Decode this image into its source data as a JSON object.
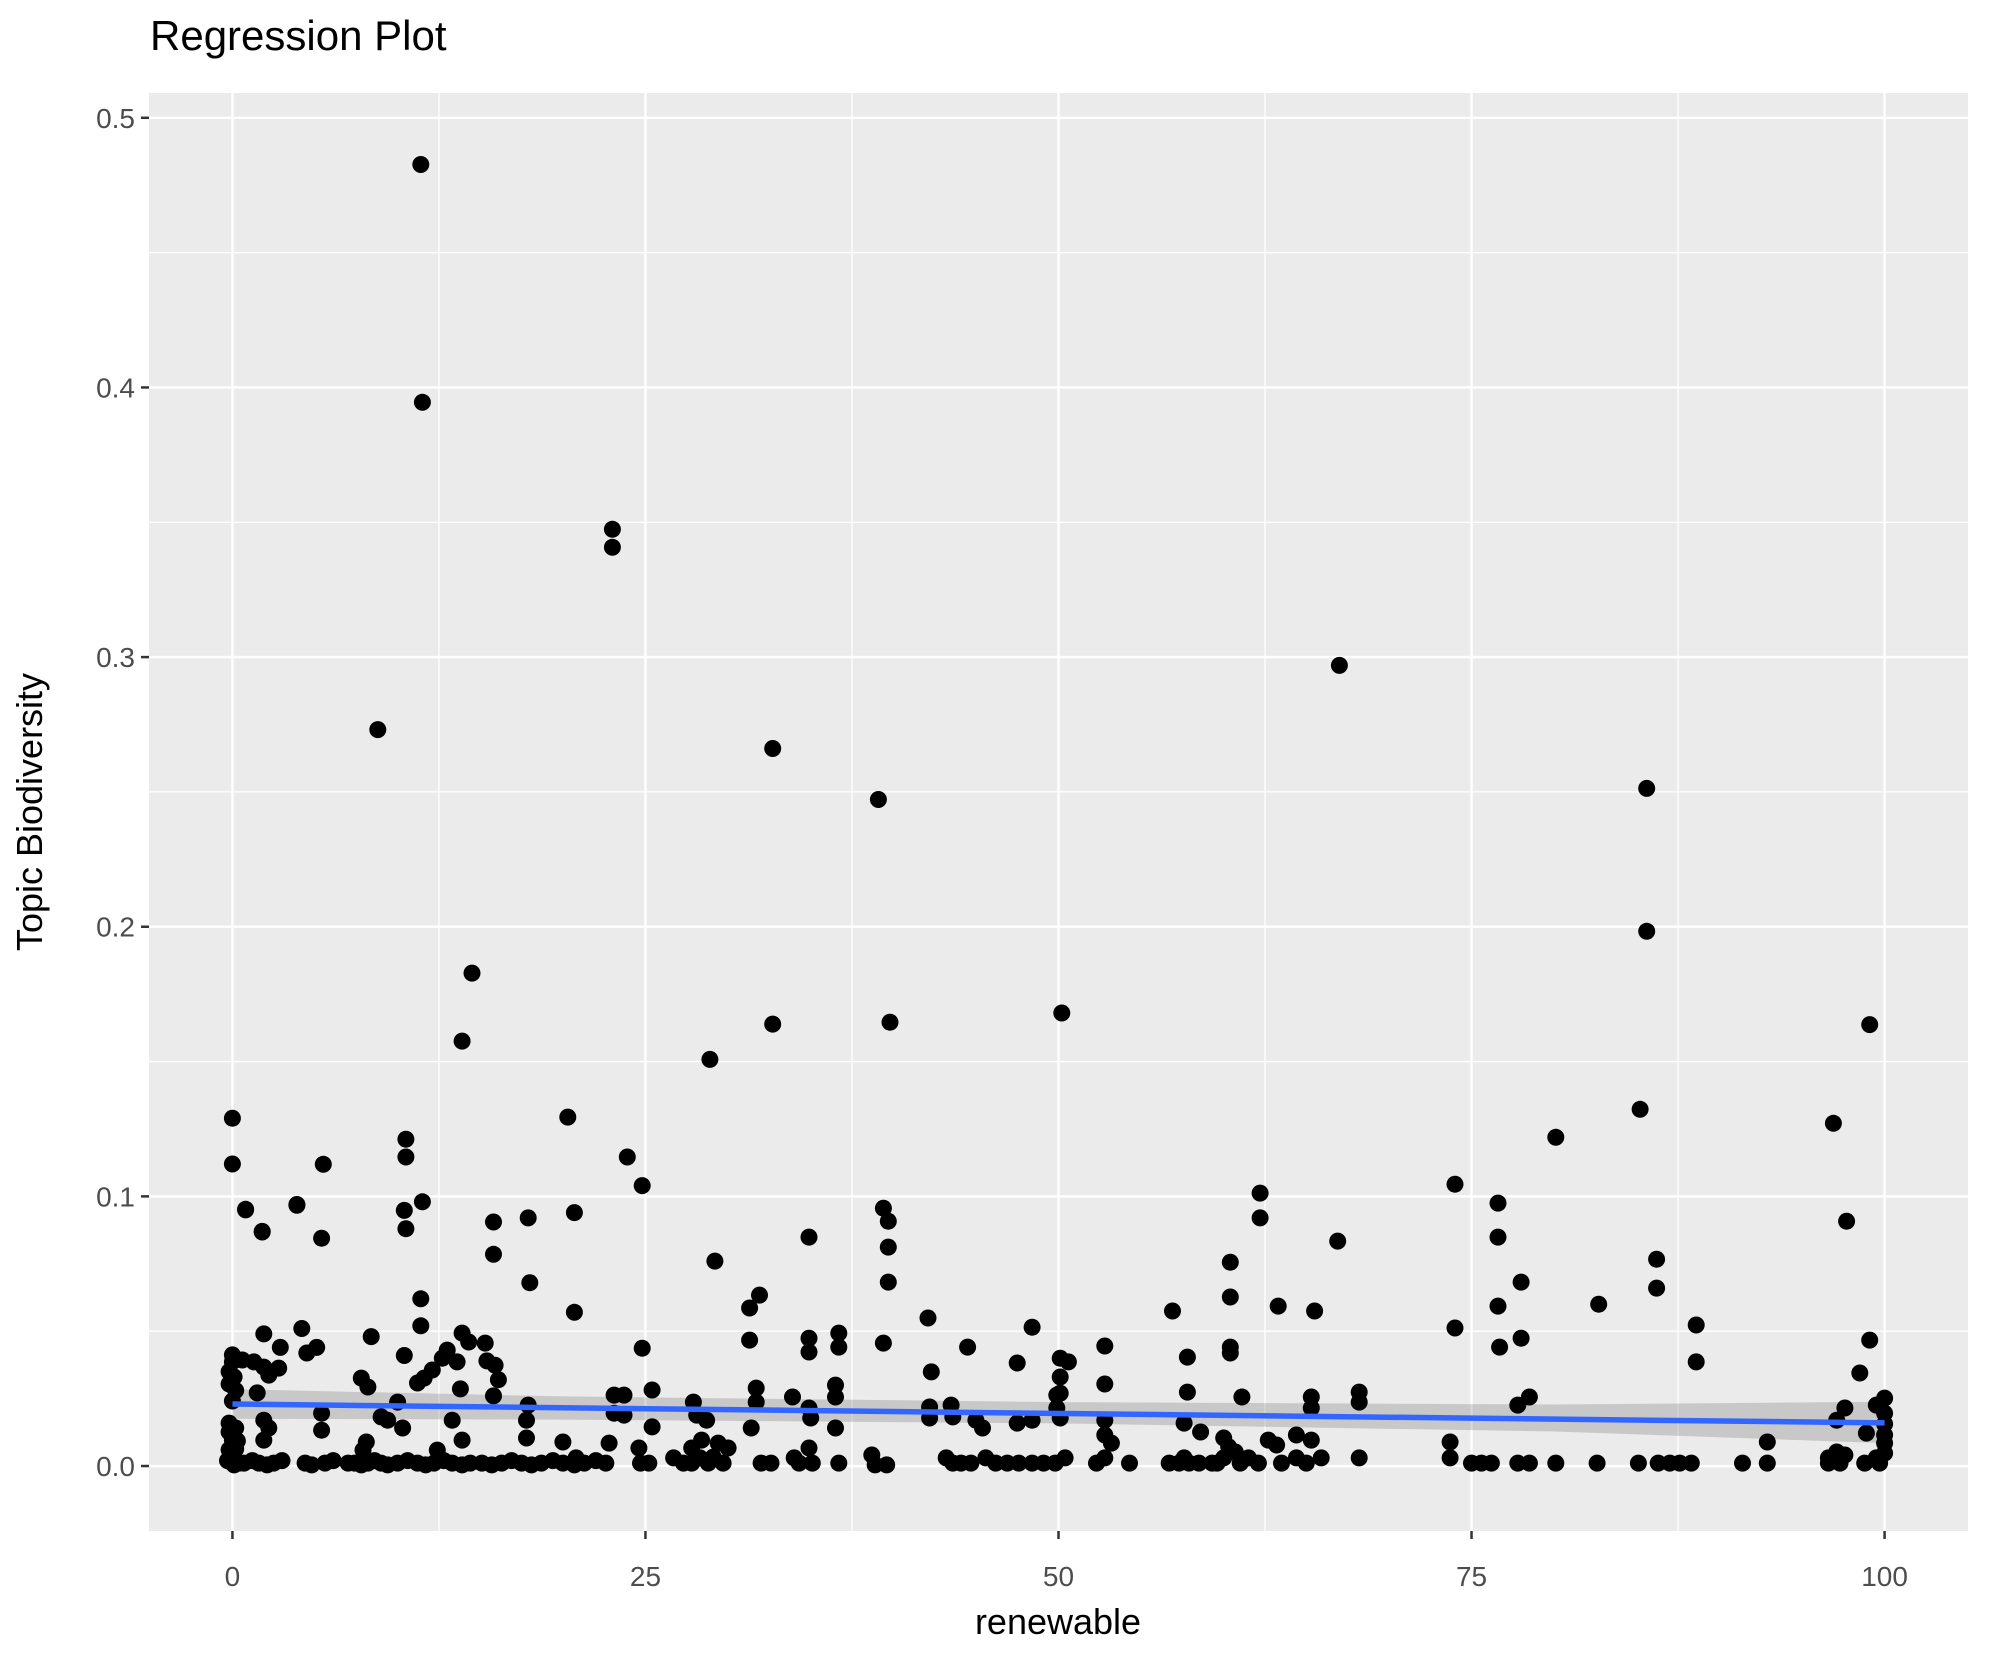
{
  "title": "Regression Plot",
  "chart_data": {
    "type": "scatter",
    "title": "Regression Plot",
    "xlabel": "renewable",
    "ylabel": "Topic Biodiversity",
    "legend": "none",
    "grid": "white major and minor gridlines on gray panel",
    "x_axis": {
      "ticks": [
        0,
        25,
        50,
        75,
        100
      ],
      "minor_ticks": [
        12.5,
        37.5,
        62.5,
        87.5
      ],
      "range": [
        -5.05,
        105.05
      ]
    },
    "y_axis": {
      "ticks": [
        0.0,
        0.1,
        0.2,
        0.3,
        0.4,
        0.5
      ],
      "tick_labels": [
        "0.0",
        "0.1",
        "0.2",
        "0.3",
        "0.4",
        "0.5"
      ],
      "minor_ticks": [
        0.05,
        0.15,
        0.25,
        0.35,
        0.45
      ],
      "range": [
        -0.0241,
        0.5092
      ]
    },
    "colors": {
      "panel_background": "#EBEBEB",
      "page_background": "#FFFFFF",
      "gridline": "#FFFFFF",
      "point": "#000000",
      "smooth_line": "#3366FF",
      "ci_ribbon": "#6E6E6E",
      "ci_ribbon_opacity": 0.28,
      "tick_label": "#4D4D4D",
      "tick_mark": "#333333",
      "title_text": "#000000"
    },
    "smooth": {
      "method": "lm",
      "line": [
        [
          0,
          0.023
        ],
        [
          100,
          0.016
        ]
      ],
      "ci_upper": [
        [
          0,
          0.0285
        ],
        [
          20,
          0.0258
        ],
        [
          50,
          0.0237
        ],
        [
          80,
          0.0228
        ],
        [
          100,
          0.0238
        ]
      ],
      "ci_lower": [
        [
          0,
          0.0175
        ],
        [
          20,
          0.0172
        ],
        [
          50,
          0.0158
        ],
        [
          80,
          0.0128
        ],
        [
          100,
          0.0085
        ]
      ]
    },
    "points": [
      [
        11.4,
        0.4827
      ],
      [
        11.5,
        0.3945
      ],
      [
        23.0,
        0.3474
      ],
      [
        23.0,
        0.3407
      ],
      [
        8.8,
        0.2731
      ],
      [
        32.7,
        0.2661
      ],
      [
        39.1,
        0.2472
      ],
      [
        67.0,
        0.2969
      ],
      [
        85.6,
        0.2513
      ],
      [
        85.6,
        0.1983
      ],
      [
        14.5,
        0.1828
      ],
      [
        13.9,
        0.1576
      ],
      [
        28.9,
        0.1508
      ],
      [
        32.7,
        0.1639
      ],
      [
        39.8,
        0.1646
      ],
      [
        50.2,
        0.168
      ],
      [
        99.1,
        0.1637
      ],
      [
        20.3,
        0.1294
      ],
      [
        85.2,
        0.1323
      ],
      [
        80.1,
        0.1219
      ],
      [
        96.9,
        0.1271
      ],
      [
        97.7,
        0.0908
      ],
      [
        74.0,
        0.1045
      ],
      [
        76.6,
        0.0975
      ],
      [
        76.6,
        0.0849
      ],
      [
        62.2,
        0.1012
      ],
      [
        62.2,
        0.092
      ],
      [
        66.9,
        0.0834
      ],
      [
        60.4,
        0.0756
      ],
      [
        56.9,
        0.0575
      ],
      [
        0,
        0.129
      ],
      [
        0,
        0.112
      ],
      [
        0,
        0.0412
      ],
      [
        0,
        0.0386
      ],
      [
        -0.2,
        0.035
      ],
      [
        0.1,
        0.033
      ],
      [
        -0.2,
        0.0304
      ],
      [
        0.2,
        0.028
      ],
      [
        0,
        0.0241
      ],
      [
        -0.2,
        0.0159
      ],
      [
        0.2,
        0.0141
      ],
      [
        -0.2,
        0.0126
      ],
      [
        0,
        0.0096
      ],
      [
        0.3,
        0.0093
      ],
      [
        -0.2,
        0.006
      ],
      [
        0.2,
        0.0063
      ],
      [
        0,
        0.0011
      ],
      [
        0.4,
        0.0011
      ],
      [
        -0.3,
        0.002
      ],
      [
        0.1,
        0.0004
      ],
      [
        0.6,
        0.0393
      ],
      [
        1.3,
        0.0386
      ],
      [
        1.9,
        0.0367
      ],
      [
        2.8,
        0.0363
      ],
      [
        2.2,
        0.0337
      ],
      [
        1.5,
        0.0271
      ],
      [
        1.9,
        0.017
      ],
      [
        2.2,
        0.0141
      ],
      [
        1.9,
        0.0096
      ],
      [
        0.8,
        0.0952
      ],
      [
        1.8,
        0.0868
      ],
      [
        3.9,
        0.0967
      ],
      [
        5.4,
        0.0845
      ],
      [
        5.5,
        0.1119
      ],
      [
        1.9,
        0.049
      ],
      [
        4.2,
        0.051
      ],
      [
        2.9,
        0.044
      ],
      [
        4.5,
        0.0419
      ],
      [
        5.1,
        0.044
      ],
      [
        5.4,
        0.0196
      ],
      [
        5.4,
        0.0133
      ],
      [
        0.7,
        0.0011
      ],
      [
        1.2,
        0.002
      ],
      [
        1.6,
        0.0011
      ],
      [
        2.1,
        0.0004
      ],
      [
        2.5,
        0.0011
      ],
      [
        3.0,
        0.002
      ],
      [
        4.4,
        0.0011
      ],
      [
        4.8,
        0.0004
      ],
      [
        5.6,
        0.0011
      ],
      [
        6.1,
        0.002
      ],
      [
        7.0,
        0.0011
      ],
      [
        7.8,
        0.0326
      ],
      [
        8.2,
        0.0293
      ],
      [
        8.4,
        0.048
      ],
      [
        8.1,
        0.0089
      ],
      [
        7.9,
        0.0059
      ],
      [
        9.0,
        0.0182
      ],
      [
        9.4,
        0.017
      ],
      [
        10.0,
        0.0237
      ],
      [
        10.3,
        0.0141
      ],
      [
        10.4,
        0.041
      ],
      [
        11.2,
        0.0308
      ],
      [
        11.6,
        0.0326
      ],
      [
        12.1,
        0.0356
      ],
      [
        12.7,
        0.04
      ],
      [
        13.0,
        0.043
      ],
      [
        13.6,
        0.0386
      ],
      [
        13.8,
        0.0286
      ],
      [
        13.3,
        0.017
      ],
      [
        13.9,
        0.0096
      ],
      [
        12.4,
        0.0059
      ],
      [
        10.5,
        0.1212
      ],
      [
        10.5,
        0.1146
      ],
      [
        11.5,
        0.098
      ],
      [
        10.4,
        0.0948
      ],
      [
        10.5,
        0.088
      ],
      [
        11.4,
        0.062
      ],
      [
        11.4,
        0.052
      ],
      [
        13.9,
        0.0493
      ],
      [
        14.3,
        0.046
      ],
      [
        15.3,
        0.0456
      ],
      [
        7.4,
        0.0011
      ],
      [
        7.8,
        0.0004
      ],
      [
        8.2,
        0.0011
      ],
      [
        8.6,
        0.002
      ],
      [
        9.0,
        0.0011
      ],
      [
        9.4,
        0.0004
      ],
      [
        10.0,
        0.0011
      ],
      [
        10.6,
        0.002
      ],
      [
        11.2,
        0.0011
      ],
      [
        11.7,
        0.0004
      ],
      [
        12.2,
        0.0011
      ],
      [
        12.8,
        0.002
      ],
      [
        13.3,
        0.0011
      ],
      [
        13.9,
        0.0004
      ],
      [
        14.4,
        0.0011
      ],
      [
        0.8,
        0.095
      ],
      [
        1.8,
        0.087
      ],
      [
        3.9,
        0.097
      ],
      [
        15.8,
        0.0905
      ],
      [
        17.9,
        0.092
      ],
      [
        20.7,
        0.094
      ],
      [
        20.7,
        0.057
      ],
      [
        15.8,
        0.0785
      ],
      [
        18.0,
        0.068
      ],
      [
        15.4,
        0.039
      ],
      [
        15.9,
        0.0374
      ],
      [
        16.1,
        0.032
      ],
      [
        15.8,
        0.026
      ],
      [
        17.9,
        0.0226
      ],
      [
        17.8,
        0.017
      ],
      [
        17.8,
        0.0104
      ],
      [
        20.0,
        0.0089
      ],
      [
        20.8,
        0.003
      ],
      [
        15.1,
        0.0011
      ],
      [
        15.7,
        0.0004
      ],
      [
        16.3,
        0.0011
      ],
      [
        16.9,
        0.002
      ],
      [
        17.5,
        0.0011
      ],
      [
        18.1,
        0.0004
      ],
      [
        18.7,
        0.0011
      ],
      [
        19.4,
        0.002
      ],
      [
        20.0,
        0.0011
      ],
      [
        20.7,
        0.0004
      ],
      [
        21.3,
        0.0011
      ],
      [
        22.0,
        0.002
      ],
      [
        22.6,
        0.0011
      ],
      [
        22.8,
        0.0085
      ],
      [
        23.9,
        0.1146
      ],
      [
        24.8,
        0.104
      ],
      [
        29.2,
        0.076
      ],
      [
        34.9,
        0.0849
      ],
      [
        39.4,
        0.0956
      ],
      [
        39.7,
        0.0908
      ],
      [
        39.7,
        0.0812
      ],
      [
        39.7,
        0.0682
      ],
      [
        31.9,
        0.0634
      ],
      [
        31.3,
        0.0586
      ],
      [
        42.1,
        0.0549
      ],
      [
        31.3,
        0.0467
      ],
      [
        24.8,
        0.0437
      ],
      [
        36.7,
        0.0493
      ],
      [
        36.7,
        0.0441
      ],
      [
        34.9,
        0.0474
      ],
      [
        34.9,
        0.0423
      ],
      [
        39.4,
        0.0456
      ],
      [
        44.5,
        0.0441
      ],
      [
        42.3,
        0.0349
      ],
      [
        47.5,
        0.0382
      ],
      [
        48.4,
        0.0515
      ],
      [
        50.1,
        0.04
      ],
      [
        50.1,
        0.033
      ],
      [
        50.1,
        0.027
      ],
      [
        23.1,
        0.0263
      ],
      [
        23.7,
        0.0263
      ],
      [
        25.4,
        0.0282
      ],
      [
        23.1,
        0.0196
      ],
      [
        23.7,
        0.0189
      ],
      [
        25.4,
        0.0145
      ],
      [
        27.9,
        0.0237
      ],
      [
        28.1,
        0.0189
      ],
      [
        28.7,
        0.017
      ],
      [
        31.7,
        0.0289
      ],
      [
        31.7,
        0.0237
      ],
      [
        31.4,
        0.0141
      ],
      [
        33.9,
        0.0256
      ],
      [
        34.9,
        0.0215
      ],
      [
        35.0,
        0.0178
      ],
      [
        36.5,
        0.03
      ],
      [
        36.5,
        0.0256
      ],
      [
        36.5,
        0.0141
      ],
      [
        42.2,
        0.0219
      ],
      [
        42.2,
        0.0178
      ],
      [
        43.5,
        0.0226
      ],
      [
        43.6,
        0.0182
      ],
      [
        45.0,
        0.017
      ],
      [
        45.4,
        0.0141
      ],
      [
        47.5,
        0.0159
      ],
      [
        48.4,
        0.017
      ],
      [
        49.9,
        0.0263
      ],
      [
        49.9,
        0.0215
      ],
      [
        50.1,
        0.0178
      ],
      [
        24.6,
        0.0067
      ],
      [
        24.7,
        0.0011
      ],
      [
        25.2,
        0.0011
      ],
      [
        26.7,
        0.003
      ],
      [
        27.3,
        0.0011
      ],
      [
        27.8,
        0.0067
      ],
      [
        27.8,
        0.0011
      ],
      [
        28.3,
        0.003
      ],
      [
        28.4,
        0.0096
      ],
      [
        28.8,
        0.0011
      ],
      [
        29.1,
        0.0033
      ],
      [
        29.4,
        0.0085
      ],
      [
        29.7,
        0.0011
      ],
      [
        30.0,
        0.0067
      ],
      [
        32.0,
        0.0011
      ],
      [
        32.6,
        0.0011
      ],
      [
        34.0,
        0.003
      ],
      [
        34.3,
        0.0011
      ],
      [
        34.9,
        0.0067
      ],
      [
        35.1,
        0.0011
      ],
      [
        36.7,
        0.0011
      ],
      [
        38.7,
        0.0041
      ],
      [
        38.9,
        0.0004
      ],
      [
        39.6,
        0.0004
      ],
      [
        43.2,
        0.003
      ],
      [
        43.6,
        0.0011
      ],
      [
        44.1,
        0.0011
      ],
      [
        44.7,
        0.0011
      ],
      [
        45.6,
        0.003
      ],
      [
        46.2,
        0.0011
      ],
      [
        46.9,
        0.0011
      ],
      [
        47.6,
        0.0011
      ],
      [
        48.4,
        0.0011
      ],
      [
        49.1,
        0.0011
      ],
      [
        49.8,
        0.0011
      ],
      [
        50.4,
        0.003
      ],
      [
        60.4,
        0.0627
      ],
      [
        63.3,
        0.0593
      ],
      [
        65.5,
        0.0575
      ],
      [
        78.0,
        0.0682
      ],
      [
        76.6,
        0.0593
      ],
      [
        74.0,
        0.0512
      ],
      [
        76.7,
        0.0441
      ],
      [
        78.0,
        0.0474
      ],
      [
        52.8,
        0.0445
      ],
      [
        57.8,
        0.0404
      ],
      [
        57.8,
        0.0274
      ],
      [
        52.8,
        0.0304
      ],
      [
        60.4,
        0.0441
      ],
      [
        60.4,
        0.0419
      ],
      [
        61.1,
        0.0256
      ],
      [
        50.6,
        0.0386
      ],
      [
        65.3,
        0.0256
      ],
      [
        65.3,
        0.0215
      ],
      [
        68.2,
        0.0274
      ],
      [
        68.2,
        0.0237
      ],
      [
        77.8,
        0.0226
      ],
      [
        52.8,
        0.017
      ],
      [
        52.8,
        0.0115
      ],
      [
        53.2,
        0.0085
      ],
      [
        52.8,
        0.003
      ],
      [
        52.3,
        0.0011
      ],
      [
        54.3,
        0.0011
      ],
      [
        57.6,
        0.0159
      ],
      [
        58.6,
        0.0126
      ],
      [
        57.6,
        0.003
      ],
      [
        56.7,
        0.0011
      ],
      [
        57.3,
        0.0011
      ],
      [
        57.9,
        0.0011
      ],
      [
        58.5,
        0.0011
      ],
      [
        59.3,
        0.0011
      ],
      [
        60.0,
        0.0104
      ],
      [
        60.3,
        0.0071
      ],
      [
        60.7,
        0.0052
      ],
      [
        60.0,
        0.003
      ],
      [
        59.6,
        0.0011
      ],
      [
        61.0,
        0.0011
      ],
      [
        61.5,
        0.003
      ],
      [
        62.1,
        0.0011
      ],
      [
        62.7,
        0.0096
      ],
      [
        63.2,
        0.0078
      ],
      [
        63.5,
        0.0011
      ],
      [
        64.4,
        0.0115
      ],
      [
        64.4,
        0.003
      ],
      [
        65.0,
        0.0011
      ],
      [
        65.3,
        0.0096
      ],
      [
        65.9,
        0.003
      ],
      [
        68.2,
        0.003
      ],
      [
        73.7,
        0.0089
      ],
      [
        73.7,
        0.003
      ],
      [
        75.0,
        0.0011
      ],
      [
        75.6,
        0.0011
      ],
      [
        76.2,
        0.0011
      ],
      [
        77.8,
        0.0011
      ],
      [
        86.2,
        0.0767
      ],
      [
        86.2,
        0.066
      ],
      [
        82.7,
        0.06
      ],
      [
        88.6,
        0.0523
      ],
      [
        88.6,
        0.0386
      ],
      [
        99.1,
        0.0467
      ],
      [
        98.5,
        0.0345
      ],
      [
        78.5,
        0.0256
      ],
      [
        100,
        0.0252
      ],
      [
        100,
        0.0196
      ],
      [
        100,
        0.0156
      ],
      [
        100,
        0.0115
      ],
      [
        97.6,
        0.0215
      ],
      [
        97.1,
        0.017
      ],
      [
        98.9,
        0.0122
      ],
      [
        99.5,
        0.0226
      ],
      [
        78.5,
        0.0011
      ],
      [
        80.1,
        0.0011
      ],
      [
        82.6,
        0.0011
      ],
      [
        85.1,
        0.0011
      ],
      [
        86.3,
        0.0011
      ],
      [
        87.0,
        0.0011
      ],
      [
        87.6,
        0.0011
      ],
      [
        88.3,
        0.0011
      ],
      [
        91.4,
        0.0011
      ],
      [
        92.9,
        0.0089
      ],
      [
        92.9,
        0.0011
      ],
      [
        96.6,
        0.003
      ],
      [
        96.6,
        0.0011
      ],
      [
        97.3,
        0.0011
      ],
      [
        97.1,
        0.0052
      ],
      [
        97.6,
        0.0041
      ],
      [
        98.8,
        0.0011
      ],
      [
        99.5,
        0.003
      ],
      [
        99.7,
        0.0011
      ],
      [
        100,
        0.0085
      ],
      [
        100,
        0.0048
      ]
    ]
  }
}
